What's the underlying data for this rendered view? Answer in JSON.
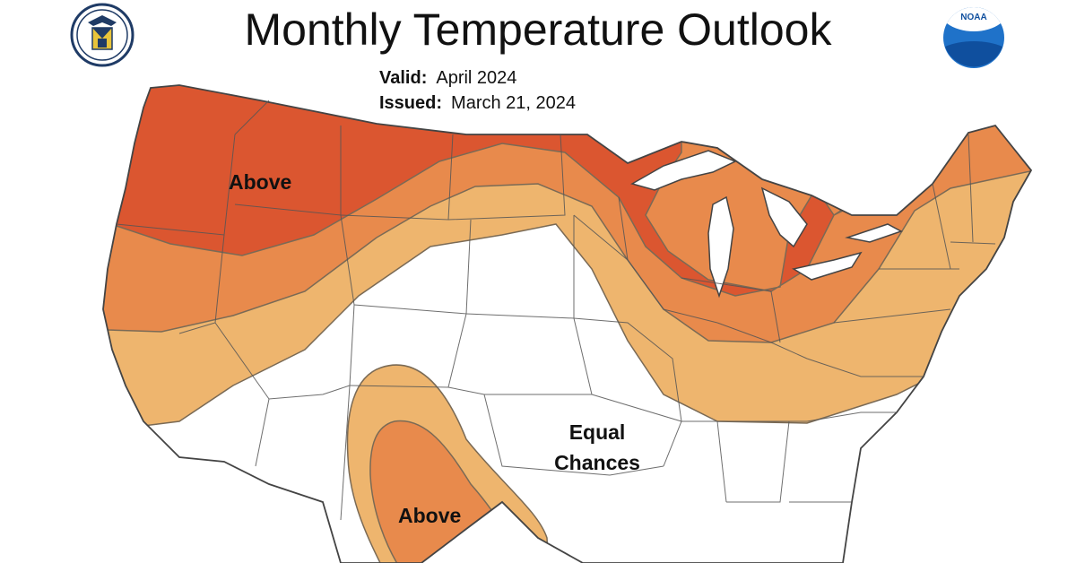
{
  "title": "Monthly Temperature Outlook",
  "valid": {
    "label": "Valid:",
    "value": "April 2024"
  },
  "issued": {
    "label": "Issued:",
    "value": "March 21, 2024"
  },
  "map_labels": {
    "above_north": "Above",
    "equal_chances_line1": "Equal",
    "equal_chances_line2": "Chances",
    "above_south": "Above"
  },
  "logos": {
    "left": "department-of-commerce-seal",
    "right_text": "NOAA"
  },
  "colors": {
    "prob_high": "#db5630",
    "prob_mid": "#e88a4c",
    "prob_low": "#eeb56e",
    "equal_chances": "#ffffff",
    "boundary": "#555555",
    "water": "#ffffff"
  }
}
